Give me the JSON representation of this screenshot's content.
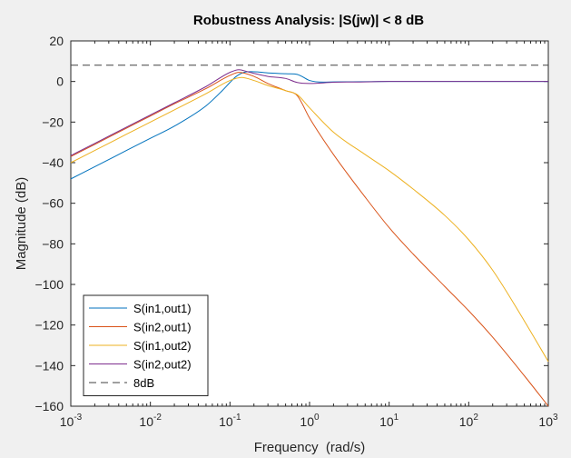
{
  "chart_data": {
    "type": "line",
    "title": "Robustness Analysis: |S(jw)| < 8 dB",
    "xlabel": "Frequency  (rad/s)",
    "ylabel": "Magnitude (dB)",
    "xscale": "log",
    "xlim": [
      0.001,
      1000
    ],
    "ylim": [
      -160,
      20
    ],
    "x_ticks": [
      {
        "base": "10",
        "exp": "-3"
      },
      {
        "base": "10",
        "exp": "-2"
      },
      {
        "base": "10",
        "exp": "-1"
      },
      {
        "base": "10",
        "exp": "0"
      },
      {
        "base": "10",
        "exp": "1"
      },
      {
        "base": "10",
        "exp": "2"
      },
      {
        "base": "10",
        "exp": "3"
      }
    ],
    "y_ticks": [
      "20",
      "0",
      "-20",
      "-40",
      "-60",
      "-80",
      "-100",
      "-120",
      "-140",
      "-160"
    ],
    "legend_position": "bottom-left",
    "grid": false,
    "series": [
      {
        "name": "S(in1,out1)",
        "color": "#0072bd",
        "style": "solid",
        "x": [
          0.001,
          0.002,
          0.005,
          0.01,
          0.02,
          0.05,
          0.08,
          0.1,
          0.12,
          0.15,
          0.2,
          0.3,
          0.5,
          0.7,
          0.8,
          1.0,
          1.5,
          2,
          5,
          10,
          100,
          1000
        ],
        "y": [
          -48,
          -42,
          -34,
          -28,
          -22,
          -12,
          -4.5,
          -0.5,
          2.5,
          4.5,
          4.8,
          4.2,
          3.8,
          3.5,
          2.5,
          0.5,
          -0.3,
          -0.2,
          -0.1,
          0,
          0,
          0
        ]
      },
      {
        "name": "S(in2,out1)",
        "color": "#d95319",
        "style": "solid",
        "x": [
          0.001,
          0.002,
          0.005,
          0.01,
          0.02,
          0.05,
          0.1,
          0.13,
          0.2,
          0.3,
          0.5,
          0.7,
          1.0,
          2,
          5,
          10,
          20,
          50,
          100,
          200,
          500,
          1000
        ],
        "y": [
          -37,
          -31,
          -23,
          -17,
          -11,
          -3.5,
          3,
          4.5,
          2.5,
          -1,
          -4.5,
          -7,
          -18,
          -36,
          -57,
          -72,
          -85,
          -101,
          -113,
          -126,
          -145,
          -160
        ]
      },
      {
        "name": "S(in1,out2)",
        "color": "#edb120",
        "style": "solid",
        "x": [
          0.001,
          0.002,
          0.005,
          0.01,
          0.02,
          0.05,
          0.1,
          0.14,
          0.2,
          0.3,
          0.5,
          0.7,
          1.0,
          2,
          5,
          10,
          20,
          50,
          100,
          200,
          500,
          1000
        ],
        "y": [
          -40,
          -34,
          -26,
          -20,
          -14,
          -6,
          0.5,
          2,
          0.5,
          -2,
          -4.5,
          -6.5,
          -13,
          -25,
          -36,
          -44,
          -53,
          -66,
          -78,
          -93,
          -118,
          -138
        ]
      },
      {
        "name": "S(in2,out2)",
        "color": "#7e2f8e",
        "style": "solid",
        "x": [
          0.001,
          0.002,
          0.005,
          0.01,
          0.02,
          0.05,
          0.1,
          0.13,
          0.16,
          0.2,
          0.3,
          0.5,
          0.7,
          1.0,
          2,
          5,
          10,
          100,
          1000
        ],
        "y": [
          -36.5,
          -30.5,
          -22.5,
          -16.5,
          -10.5,
          -2.5,
          4.5,
          5.8,
          5,
          4,
          2.5,
          1.5,
          -0.5,
          -1,
          -0.4,
          -0.2,
          0,
          0,
          0
        ]
      },
      {
        "name": "8dB",
        "color": "#404040",
        "style": "dashed",
        "x": [
          0.001,
          1000
        ],
        "y": [
          8,
          8
        ]
      }
    ]
  }
}
